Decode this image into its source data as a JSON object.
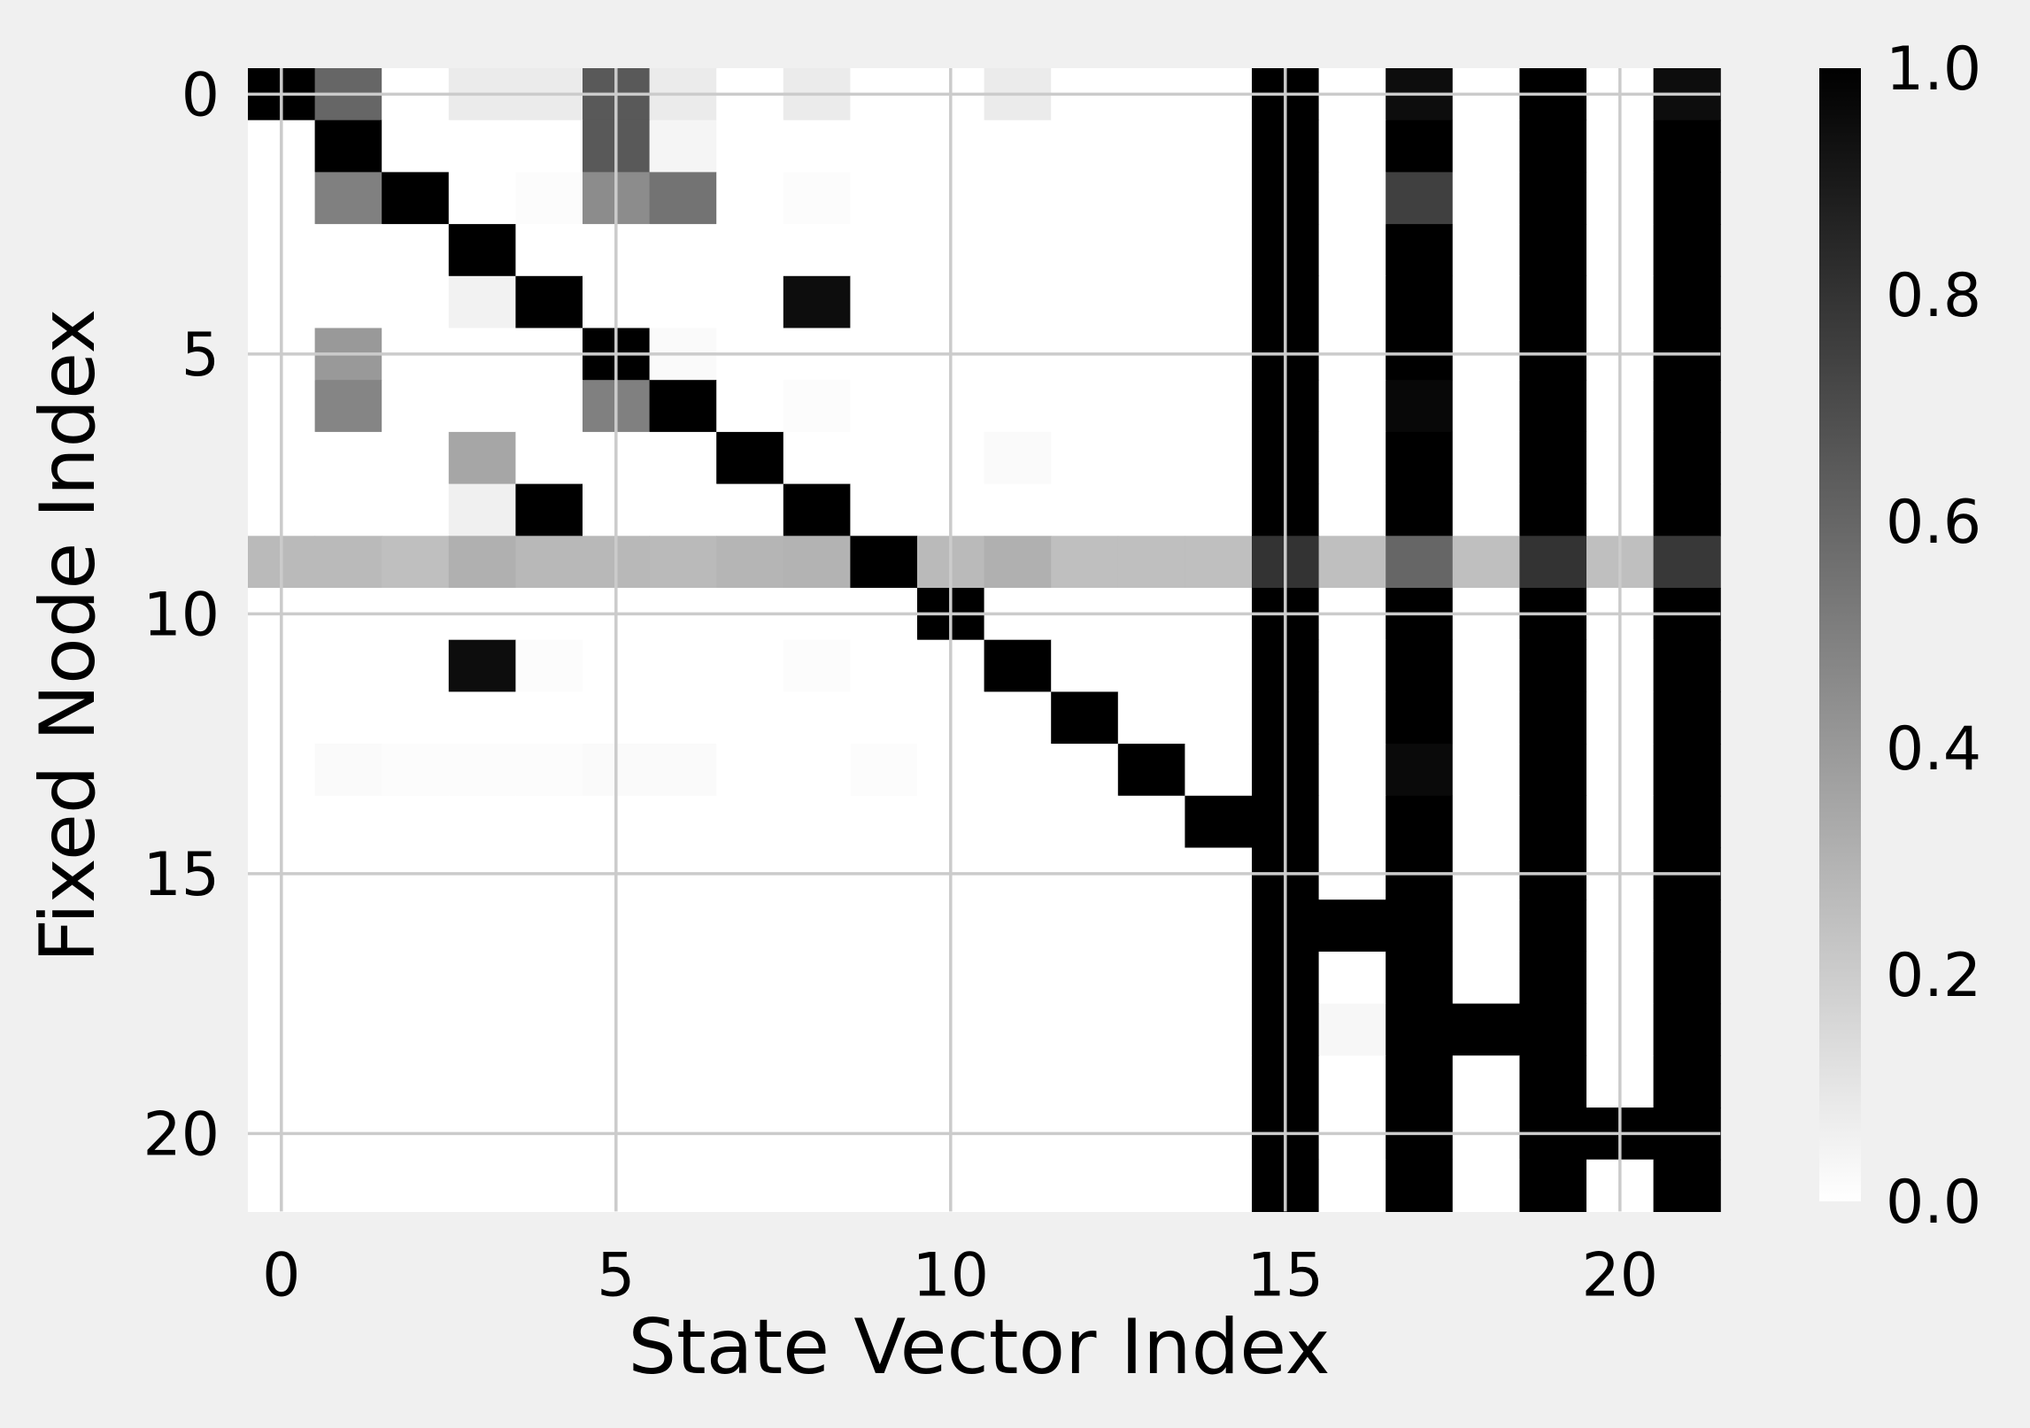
{
  "chart_data": {
    "type": "heatmap",
    "title": "",
    "xlabel": "State Vector Index",
    "ylabel": "Fixed Node Index",
    "rows": 22,
    "cols": 22,
    "xlim": [
      -0.5,
      21.5
    ],
    "ylim": [
      21.5,
      -0.5
    ],
    "xticks": [
      0,
      5,
      10,
      15,
      20
    ],
    "yticks": [
      0,
      5,
      10,
      15,
      20
    ],
    "grid": true,
    "colormap": "gray_r",
    "vmin": 0.0,
    "vmax": 1.0,
    "colorbar": {
      "ticks": [
        "0.0",
        "0.2",
        "0.4",
        "0.6",
        "0.8",
        "1.0"
      ],
      "values": [
        0.0,
        0.2,
        0.4,
        0.6,
        0.8,
        1.0
      ]
    },
    "colors": {
      "background": "#f0f0f0",
      "grid": "#cbcbcb",
      "high": "#000000",
      "low": "#ffffff"
    },
    "matrix": [
      [
        1,
        0.6,
        0,
        0.08,
        0.08,
        0.65,
        0.08,
        0,
        0.08,
        0,
        0,
        0.08,
        0,
        0,
        0,
        1,
        0,
        0.95,
        0,
        1,
        0,
        0.95
      ],
      [
        0,
        1,
        0,
        0,
        0,
        0.65,
        0.04,
        0,
        0,
        0,
        0,
        0,
        0,
        0,
        0,
        1,
        0,
        1,
        0,
        1,
        0,
        1
      ],
      [
        0,
        0.5,
        1,
        0,
        0.01,
        0.45,
        0.55,
        0,
        0.01,
        0,
        0,
        0,
        0,
        0,
        0,
        1,
        0,
        0.75,
        0,
        1,
        0,
        1
      ],
      [
        0,
        0,
        0,
        1,
        0,
        0,
        0,
        0,
        0,
        0,
        0,
        0,
        0,
        0,
        0,
        1,
        0,
        1,
        0,
        1,
        0,
        1
      ],
      [
        0,
        0,
        0,
        0.05,
        1,
        0,
        0,
        0,
        0.95,
        0,
        0,
        0,
        0,
        0,
        0,
        1,
        0,
        1,
        0,
        1,
        0,
        1
      ],
      [
        0,
        0.4,
        0,
        0,
        0,
        1,
        0.02,
        0,
        0,
        0,
        0,
        0,
        0,
        0,
        0,
        1,
        0,
        1,
        0,
        1,
        0,
        1
      ],
      [
        0,
        0.48,
        0,
        0,
        0,
        0.5,
        1,
        0,
        0.01,
        0,
        0,
        0,
        0,
        0,
        0,
        1,
        0,
        0.97,
        0,
        1,
        0,
        1
      ],
      [
        0,
        0,
        0,
        0.35,
        0,
        0,
        0,
        1,
        0,
        0,
        0,
        0.02,
        0,
        0,
        0,
        1,
        0,
        1,
        0,
        1,
        0,
        1
      ],
      [
        0,
        0,
        0,
        0.06,
        1,
        0,
        0,
        0,
        1,
        0,
        0,
        0,
        0,
        0,
        0,
        1,
        0,
        1,
        0,
        1,
        0,
        1
      ],
      [
        0.27,
        0.27,
        0.25,
        0.31,
        0.28,
        0.28,
        0.27,
        0.29,
        0.3,
        1,
        0.27,
        0.31,
        0.25,
        0.25,
        0.25,
        0.8,
        0.25,
        0.6,
        0.25,
        0.8,
        0.25,
        0.78
      ],
      [
        0,
        0,
        0,
        0,
        0,
        0,
        0,
        0,
        0,
        0,
        1,
        0,
        0,
        0,
        0,
        1,
        0,
        1,
        0,
        1,
        0,
        1
      ],
      [
        0,
        0,
        0,
        0.95,
        0.01,
        0,
        0,
        0,
        0.01,
        0,
        0,
        1,
        0,
        0,
        0,
        1,
        0,
        1,
        0,
        1,
        0,
        1
      ],
      [
        0,
        0,
        0,
        0,
        0,
        0,
        0,
        0,
        0,
        0,
        0,
        0,
        1,
        0,
        0,
        1,
        0,
        1,
        0,
        1,
        0,
        1
      ],
      [
        0,
        0.02,
        0.01,
        0.01,
        0.01,
        0.02,
        0.02,
        0,
        0,
        0.01,
        0,
        0,
        0,
        1,
        0,
        1,
        0,
        0.96,
        0,
        1,
        0,
        1
      ],
      [
        0,
        0,
        0,
        0,
        0,
        0,
        0,
        0,
        0,
        0,
        0,
        0,
        0,
        0,
        1,
        1,
        0,
        1,
        0,
        1,
        0,
        1
      ],
      [
        0,
        0,
        0,
        0,
        0,
        0,
        0,
        0,
        0,
        0,
        0,
        0,
        0,
        0,
        0,
        1,
        0,
        1,
        0,
        1,
        0,
        1
      ],
      [
        0,
        0,
        0,
        0,
        0,
        0,
        0,
        0,
        0,
        0,
        0,
        0,
        0,
        0,
        0,
        1,
        1,
        1,
        0,
        1,
        0,
        1
      ],
      [
        0,
        0,
        0,
        0,
        0,
        0,
        0,
        0,
        0,
        0,
        0,
        0,
        0,
        0,
        0,
        1,
        0,
        1,
        0,
        1,
        0,
        1
      ],
      [
        0,
        0,
        0,
        0,
        0,
        0,
        0,
        0,
        0,
        0,
        0,
        0,
        0,
        0,
        0,
        1,
        0.03,
        1,
        1,
        1,
        0,
        1
      ],
      [
        0,
        0,
        0,
        0,
        0,
        0,
        0,
        0,
        0,
        0,
        0,
        0,
        0,
        0,
        0,
        1,
        0,
        1,
        0,
        1,
        0,
        1
      ],
      [
        0,
        0,
        0,
        0,
        0,
        0,
        0,
        0,
        0,
        0,
        0,
        0,
        0,
        0,
        0,
        1,
        0,
        1,
        0,
        1,
        1,
        1
      ],
      [
        0,
        0,
        0,
        0,
        0,
        0,
        0,
        0,
        0,
        0,
        0,
        0,
        0,
        0,
        0,
        1,
        0,
        1,
        0,
        1,
        0,
        1
      ]
    ]
  }
}
